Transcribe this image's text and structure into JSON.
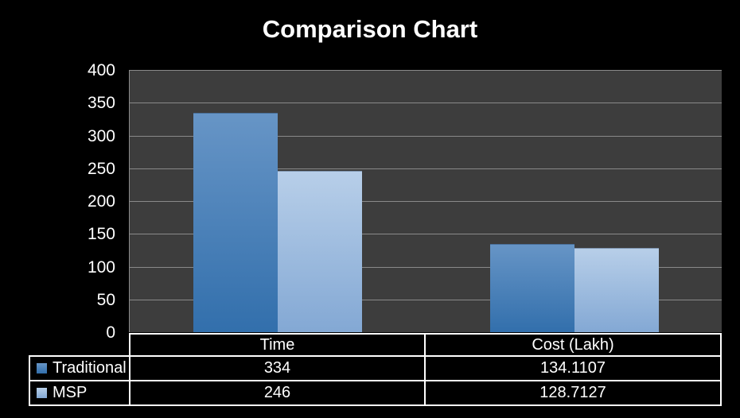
{
  "chart_data": {
    "type": "bar",
    "title": "Comparison Chart",
    "categories": [
      "Time",
      "Cost (Lakh)"
    ],
    "series": [
      {
        "name": "Traditional",
        "values": [
          334,
          134.1107
        ],
        "color_top": "#6795c6",
        "color_bottom": "#326fac"
      },
      {
        "name": "MSP",
        "values": [
          246,
          128.7127
        ],
        "color_top": "#b8cfe9",
        "color_bottom": "#83a8d4"
      }
    ],
    "ylim": [
      0,
      400
    ],
    "ytick_step": 50,
    "yticks": [
      400,
      350,
      300,
      250,
      200,
      150,
      100,
      50,
      0
    ],
    "grid": true,
    "legend_position": "table-left-column",
    "colors": {
      "background": "#000000",
      "plot_bg": "#3d3d3d",
      "gridline": "#8a8a8a",
      "text": "#ffffff",
      "table_border": "#ffffff"
    }
  },
  "table": {
    "column_headers": [
      "Time",
      "Cost (Lakh)"
    ],
    "rows": [
      {
        "legend": "Traditional",
        "values": [
          "334",
          "134.1107"
        ]
      },
      {
        "legend": "MSP",
        "values": [
          "246",
          "128.7127"
        ]
      }
    ]
  }
}
